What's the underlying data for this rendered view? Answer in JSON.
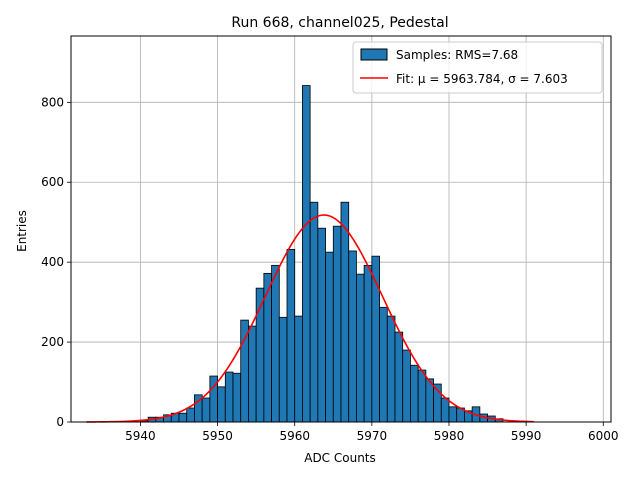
{
  "chart_data": {
    "type": "bar",
    "title": "Run 668, channel025, Pedestal",
    "xlabel": "ADC Counts",
    "ylabel": "Entries",
    "xlim": [
      5931,
      6001
    ],
    "ylim": [
      0,
      966
    ],
    "xticks": [
      5940,
      5950,
      5960,
      5970,
      5980,
      5990,
      6000
    ],
    "yticks": [
      0,
      200,
      400,
      600,
      800
    ],
    "grid": true,
    "legend_position": "top-right",
    "bin_width": 1,
    "bin_starts": [
      5940,
      5941,
      5942,
      5943,
      5944,
      5945,
      5946,
      5947,
      5948,
      5949,
      5950,
      5951,
      5952,
      5953,
      5954,
      5955,
      5956,
      5957,
      5958,
      5959,
      5960,
      5961,
      5962,
      5963,
      5964,
      5965,
      5966,
      5967,
      5968,
      5969,
      5970,
      5971,
      5972,
      5973,
      5974,
      5975,
      5976,
      5977,
      5978,
      5979,
      5980,
      5981,
      5982,
      5983,
      5984,
      5985,
      5986
    ],
    "counts": [
      3,
      12,
      12,
      18,
      22,
      22,
      35,
      68,
      60,
      115,
      88,
      125,
      122,
      255,
      240,
      335,
      372,
      392,
      262,
      432,
      265,
      842,
      550,
      485,
      425,
      490,
      550,
      428,
      370,
      392,
      415,
      287,
      265,
      225,
      180,
      142,
      130,
      108,
      95,
      60,
      38,
      35,
      28,
      38,
      20,
      15,
      8
    ],
    "series": [
      {
        "name": "Samples: RMS=7.68",
        "kind": "histogram",
        "color": "#1f77b4"
      },
      {
        "name": "Fit: μ = 5963.784, σ = 7.603",
        "kind": "line",
        "color": "#ff0000",
        "fit": {
          "mu": 5963.784,
          "sigma": 7.603,
          "amplitude": 518,
          "x_range": [
            5933,
            5991
          ]
        }
      }
    ]
  }
}
